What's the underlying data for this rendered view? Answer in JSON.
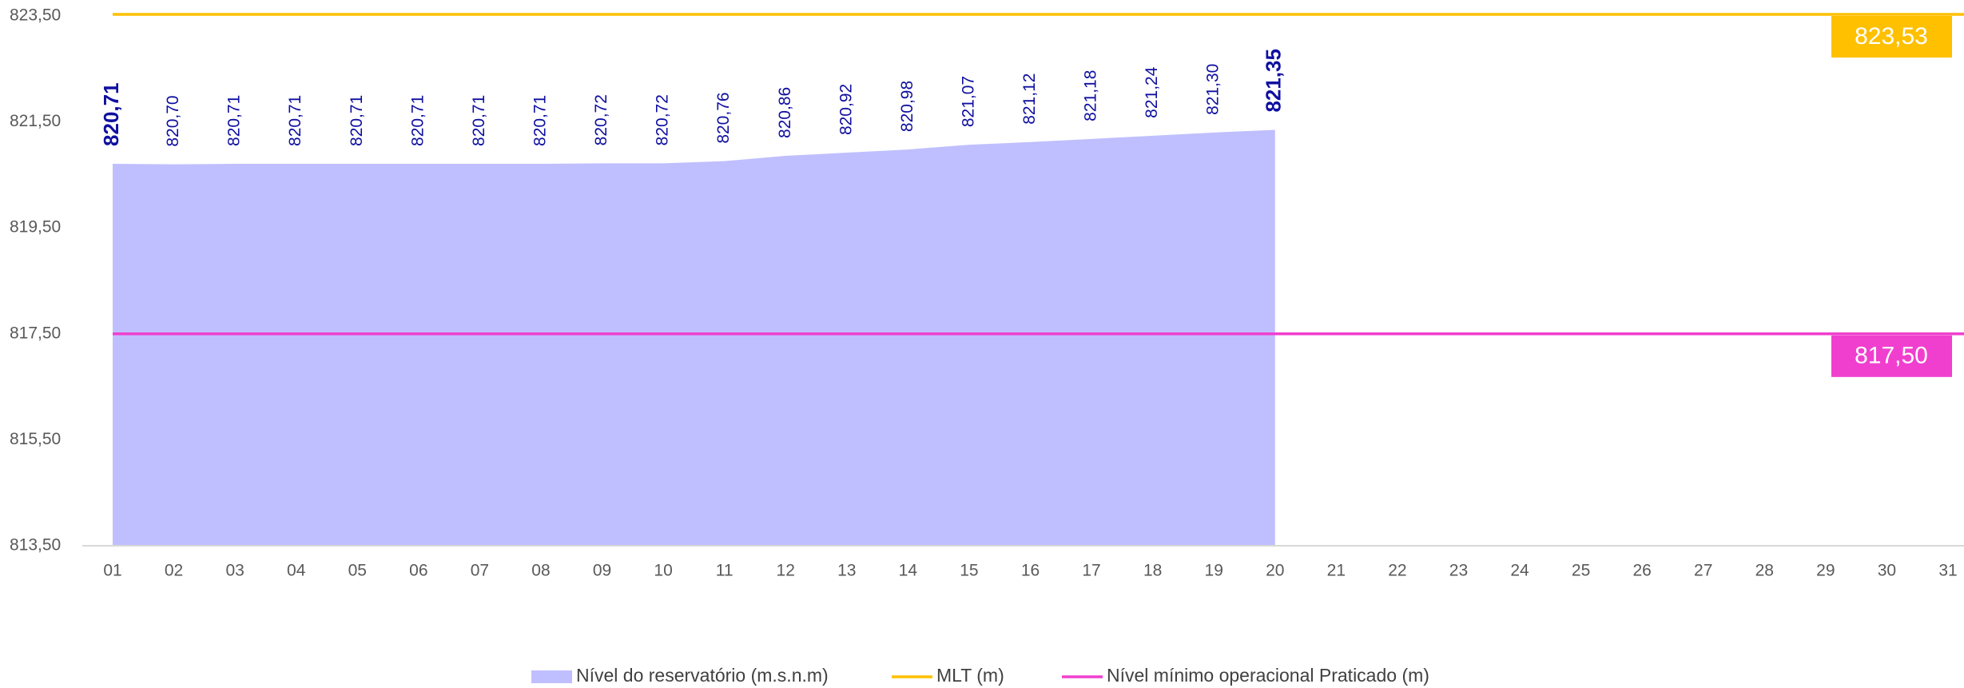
{
  "chart_data": {
    "type": "area",
    "categories": [
      "01",
      "02",
      "03",
      "04",
      "05",
      "06",
      "07",
      "08",
      "09",
      "10",
      "11",
      "12",
      "13",
      "14",
      "15",
      "16",
      "17",
      "18",
      "19",
      "20",
      "21",
      "22",
      "23",
      "24",
      "25",
      "26",
      "27",
      "28",
      "29",
      "30",
      "31"
    ],
    "ylim": [
      813.5,
      823.5
    ],
    "yticks": [
      {
        "value": 813.5,
        "label": "813,50"
      },
      {
        "value": 815.5,
        "label": "815,50"
      },
      {
        "value": 817.5,
        "label": "817,50"
      },
      {
        "value": 819.5,
        "label": "819,50"
      },
      {
        "value": 821.5,
        "label": "821,50"
      },
      {
        "value": 823.5,
        "label": "823,50"
      }
    ],
    "series": [
      {
        "name": "Nível do reservatório (m.s.n.m)",
        "color": "#bfbfff",
        "label_color": "#0f0fa0",
        "values": [
          820.71,
          820.7,
          820.71,
          820.71,
          820.71,
          820.71,
          820.71,
          820.71,
          820.72,
          820.72,
          820.76,
          820.86,
          820.92,
          820.98,
          821.07,
          821.12,
          821.18,
          821.24,
          821.3,
          821.35,
          null,
          null,
          null,
          null,
          null,
          null,
          null,
          null,
          null,
          null,
          null
        ],
        "value_labels": [
          "820,71",
          "820,70",
          "820,71",
          "820,71",
          "820,71",
          "820,71",
          "820,71",
          "820,71",
          "820,72",
          "820,72",
          "820,76",
          "820,86",
          "820,92",
          "820,98",
          "821,07",
          "821,12",
          "821,18",
          "821,24",
          "821,30",
          "821,35",
          null,
          null,
          null,
          null,
          null,
          null,
          null,
          null,
          null,
          null,
          null
        ]
      },
      {
        "name": "MLT (m)",
        "color": "#ffc000",
        "type": "hline",
        "value": 823.53,
        "value_label": "823,53"
      },
      {
        "name": "Nível mínimo operacional Praticado (m)",
        "color": "#f03fcf",
        "type": "hline",
        "value": 817.5,
        "value_label": "817,50"
      }
    ]
  }
}
